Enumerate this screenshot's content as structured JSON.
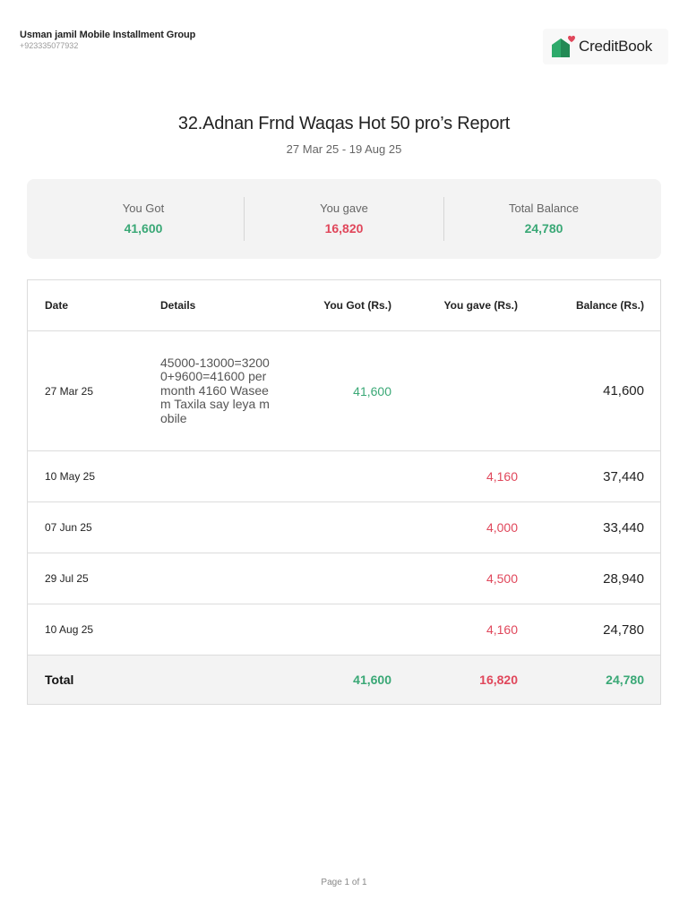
{
  "business": {
    "name": "Usman jamil Mobile Installment Group",
    "phone": "+923335077932"
  },
  "brand": {
    "name": "CreditBook",
    "logo_icon": "creditbook-house-heart-icon",
    "colors": {
      "green": "#2eaa6b",
      "red": "#e0475b"
    }
  },
  "report": {
    "title": "32.Adnan Frnd Waqas Hot 50 pro’s Report",
    "date_range": "27 Mar 25 - 19 Aug 25"
  },
  "summary": {
    "got_label": "You Got",
    "got_value": "41,600",
    "gave_label": "You gave",
    "gave_value": "16,820",
    "balance_label": "Total Balance",
    "balance_value": "24,780"
  },
  "table": {
    "headers": {
      "date": "Date",
      "details": "Details",
      "got": "You Got (Rs.)",
      "gave": "You gave (Rs.)",
      "balance": "Balance (Rs.)"
    },
    "rows": [
      {
        "date": "27 Mar 25",
        "details": "45000-13000=32000+9600=41600 per month 4160 Waseem Taxila say leya mobile",
        "got": "41,600",
        "gave": "",
        "balance": "41,600"
      },
      {
        "date": "10 May 25",
        "details": "",
        "got": "",
        "gave": "4,160",
        "balance": "37,440"
      },
      {
        "date": "07 Jun 25",
        "details": "",
        "got": "",
        "gave": "4,000",
        "balance": "33,440"
      },
      {
        "date": "29 Jul 25",
        "details": "",
        "got": "",
        "gave": "4,500",
        "balance": "28,940"
      },
      {
        "date": "10 Aug 25",
        "details": "",
        "got": "",
        "gave": "4,160",
        "balance": "24,780"
      }
    ],
    "total": {
      "label": "Total",
      "got": "41,600",
      "gave": "16,820",
      "balance": "24,780"
    }
  },
  "footer": {
    "page": "Page 1 of 1"
  },
  "colors": {
    "positive": "#3aa876",
    "negative": "#e0475b"
  }
}
